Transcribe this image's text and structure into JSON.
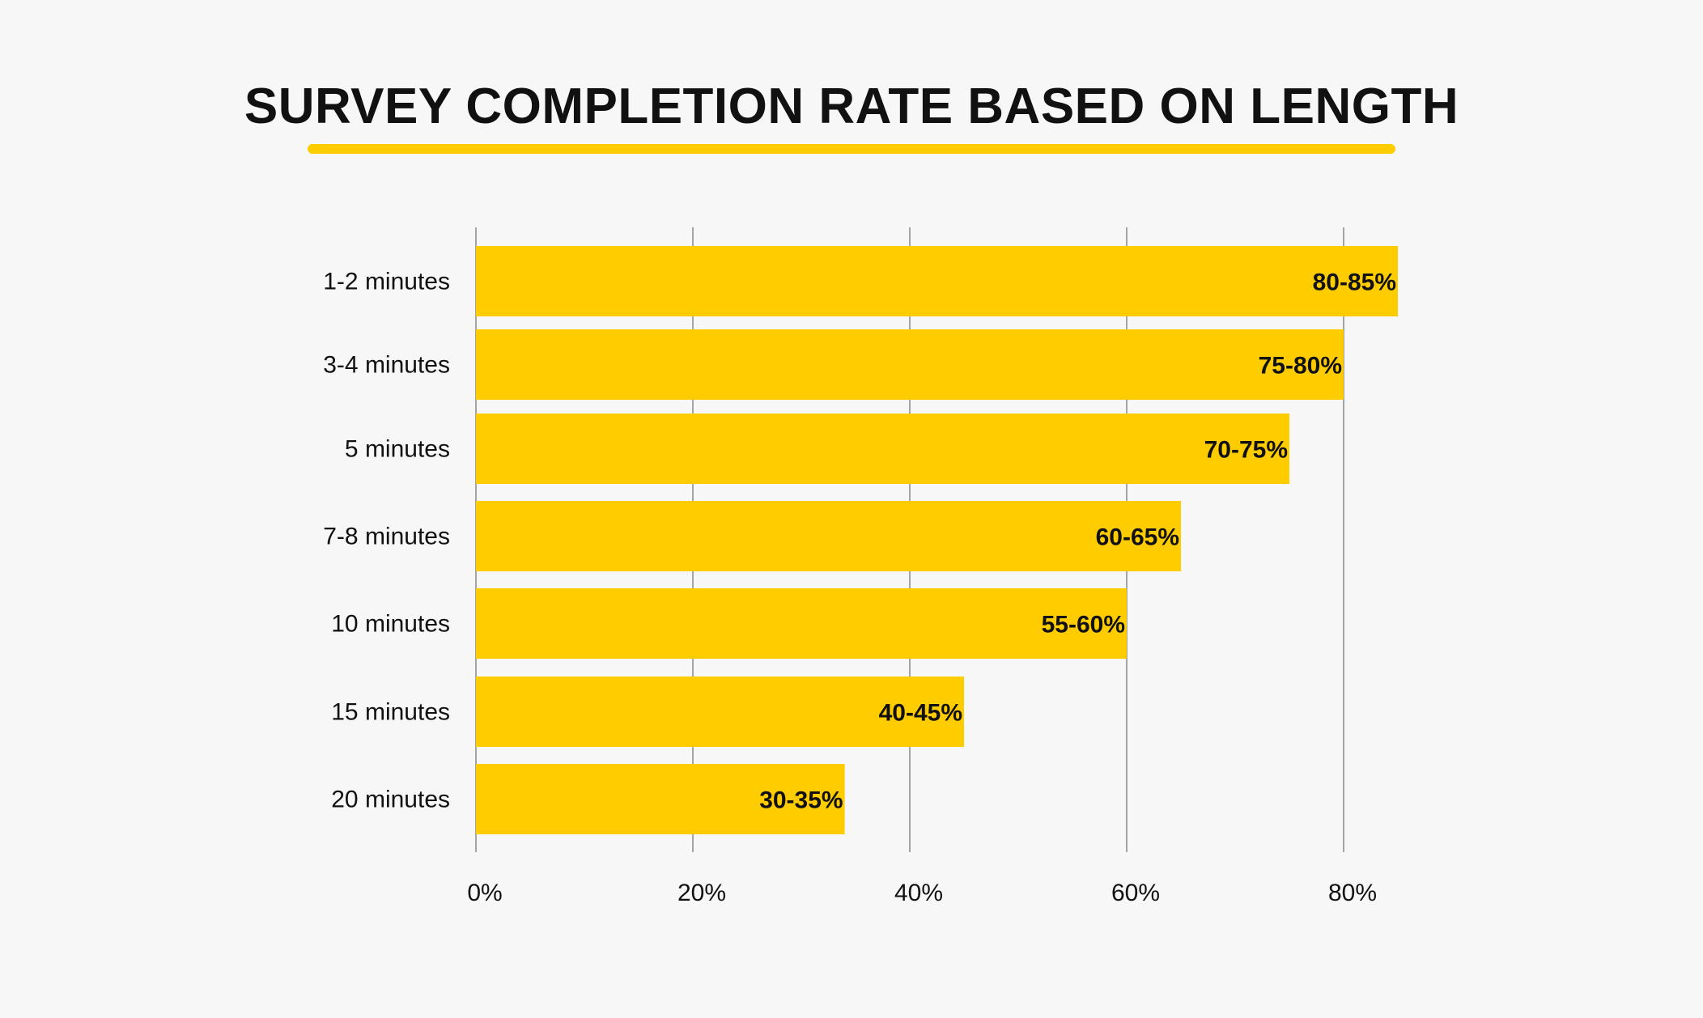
{
  "colors": {
    "background": "#f7f7f7",
    "bar": "#ffcc00",
    "accent": "#ffcc00",
    "gridline": "#888888",
    "text": "#111111"
  },
  "chart_data": {
    "type": "bar",
    "orientation": "horizontal",
    "title": "SURVEY COMPLETION RATE BASED ON LENGTH",
    "xlabel": "",
    "ylabel": "",
    "categories": [
      "1-2 minutes",
      "3-4 minutes",
      "5 minutes",
      "7-8 minutes",
      "10 minutes",
      "15 minutes",
      "20 minutes"
    ],
    "values": [
      85,
      80,
      75,
      65,
      60,
      45,
      34
    ],
    "value_labels": [
      "80-85%",
      "75-80%",
      "70-75%",
      "60-65%",
      "55-60%",
      "40-45%",
      "30-35%"
    ],
    "xlim": [
      0,
      80
    ],
    "xticks": [
      0,
      20,
      40,
      60,
      80
    ],
    "xtick_labels": [
      "0%",
      "20%",
      "40%",
      "60%",
      "80%"
    ],
    "grid": true,
    "legend": "none"
  }
}
